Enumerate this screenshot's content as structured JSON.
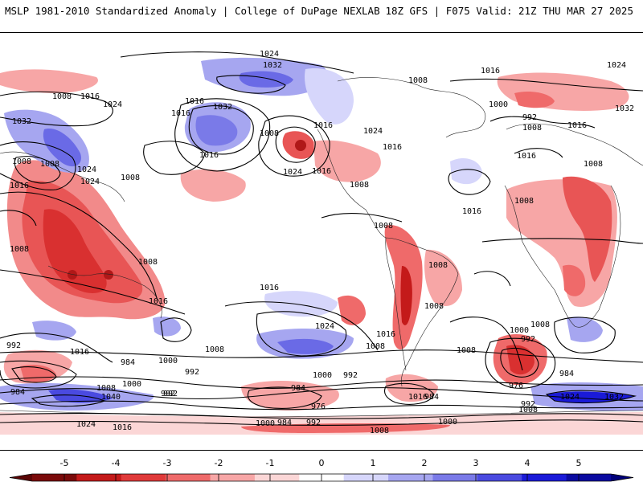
{
  "header": {
    "title": "MSLP 1981-2010 Standardized Anomaly | College of DuPage NEXLAB",
    "run_info": "18Z GFS | F075 Valid: 21Z THU MAR 27 2025"
  },
  "isobar_labels": [
    "1024",
    "1032",
    "1008",
    "1016",
    "1008",
    "1016",
    "1024",
    "1032",
    "1016",
    "1016",
    "1024",
    "1032",
    "1008",
    "1016",
    "1024",
    "1016",
    "1016",
    "1000",
    "992",
    "1008",
    "1016",
    "1024",
    "1032",
    "1016",
    "1008",
    "1024",
    "1008",
    "1008",
    "1024",
    "1016",
    "1008",
    "1008",
    "1008",
    "1008",
    "1008",
    "1016",
    "1008",
    "1016",
    "1016",
    "1008",
    "1024",
    "1016",
    "1008",
    "1016",
    "992",
    "1016",
    "1008",
    "984",
    "992",
    "1000",
    "992",
    "1008",
    "1000",
    "992",
    "976",
    "984",
    "992",
    "1008",
    "1000",
    "992",
    "1008",
    "984",
    "984",
    "1008",
    "1040",
    "1000",
    "992",
    "976",
    "984",
    "992",
    "1000",
    "984",
    "1024",
    "1032",
    "1008",
    "1016",
    "1024",
    "1016",
    "1008",
    "1000"
  ],
  "colorbar": {
    "ticks": [
      "-5",
      "-4",
      "-3",
      "-2",
      "-1",
      "0",
      "1",
      "2",
      "3",
      "4",
      "5"
    ],
    "colors": [
      "#7a0a0a",
      "#c41a1a",
      "#e03a3a",
      "#ef6a6a",
      "#f7a6a6",
      "#fbd6d6",
      "#ffffff",
      "#d6d6fb",
      "#a6a6f0",
      "#7a7ae8",
      "#4a4ae0",
      "#1a1ad8",
      "#0a0aa0"
    ]
  }
}
